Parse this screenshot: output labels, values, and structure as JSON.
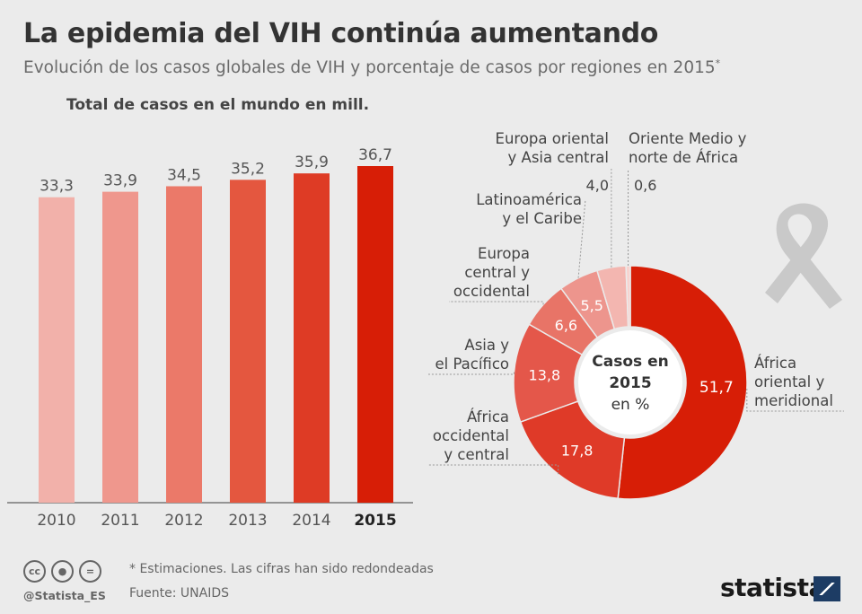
{
  "header": {
    "title": "La epidemia del VIH continúa aumentando",
    "subtitle": "Evolución de los casos globales de VIH y porcentaje de casos por regiones en 2015",
    "subtitle_mark": "*"
  },
  "chart_data": [
    {
      "type": "bar",
      "title": "Total de casos en el mundo en mill.",
      "categories": [
        "2010",
        "2011",
        "2012",
        "2013",
        "2014",
        "2015"
      ],
      "values": [
        33.3,
        33.9,
        34.5,
        35.2,
        35.9,
        36.7
      ],
      "value_labels": [
        "33,3",
        "33,9",
        "34,5",
        "35,2",
        "35,9",
        "36,7"
      ],
      "colors": [
        "#f2b1aa",
        "#ef978d",
        "#eb7969",
        "#e4573f",
        "#de3b25",
        "#d71e06"
      ],
      "highlight": "2015",
      "ylim": [
        0,
        36.7
      ]
    },
    {
      "type": "pie",
      "variant": "donut",
      "center_label": [
        "Casos en",
        "2015",
        "en %"
      ],
      "slices": [
        {
          "label": [
            "África",
            "oriental y",
            "meridional"
          ],
          "value": 51.7,
          "value_label": "51,7",
          "color": "#d71e06"
        },
        {
          "label": [
            "África",
            "occidental",
            "y central"
          ],
          "value": 17.8,
          "value_label": "17,8",
          "color": "#df3a28"
        },
        {
          "label": [
            "Asia y",
            "el Pacífico"
          ],
          "value": 13.8,
          "value_label": "13,8",
          "color": "#e4574a"
        },
        {
          "label": [
            "Europa",
            "central y",
            "occidental"
          ],
          "value": 6.6,
          "value_label": "6,6",
          "color": "#e87467"
        },
        {
          "label": [
            "Latinoamérica",
            "y el Caribe"
          ],
          "value": 5.5,
          "value_label": "5,5",
          "color": "#ed958d"
        },
        {
          "label": [
            "Europa oriental",
            "y Asia central"
          ],
          "value": 4.0,
          "value_label": "4,0",
          "color": "#f3b6b0"
        },
        {
          "label": [
            "Oriente Medio y",
            "norte de África"
          ],
          "value": 0.6,
          "value_label": "0,6",
          "color": "#f8d3cf"
        }
      ]
    }
  ],
  "footer": {
    "note": "* Estimaciones. Las cifras han sido redondeadas",
    "source": "Fuente: UNAIDS",
    "handle": "@Statista_ES",
    "brand": "statista",
    "cc_icons": [
      "cc-icon",
      "by-icon",
      "nd-icon"
    ]
  }
}
